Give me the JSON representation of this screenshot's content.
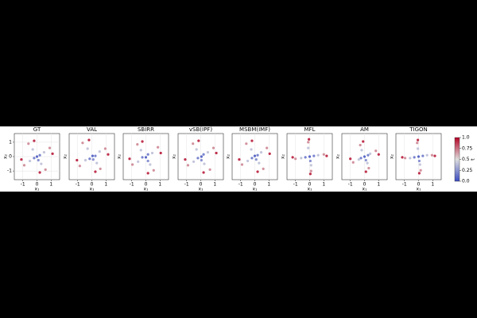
{
  "chart_data": [
    {
      "type": "scatter",
      "title": "GT",
      "xlabel": "x₁",
      "ylabel": "x₂",
      "xlim": [
        -1.6,
        1.6
      ],
      "ylim": [
        -1.6,
        1.6
      ],
      "xticks": [
        -1,
        0,
        1
      ],
      "yticks": [
        -1,
        0,
        1
      ],
      "x": [
        0,
        0.2,
        -0.2,
        0.1,
        0.5,
        -0.5,
        0.3,
        -0.3,
        0.9,
        -0.9,
        0.6,
        -0.6,
        1.1,
        -1.1,
        0.2,
        -0.2
      ],
      "y": [
        0,
        0.1,
        -0.1,
        -0.25,
        0.3,
        -0.3,
        -0.5,
        0.5,
        0.6,
        -0.6,
        -0.9,
        0.9,
        0.2,
        -0.2,
        -1.1,
        1.1
      ],
      "t": [
        0.05,
        0.15,
        0.15,
        0.2,
        0.4,
        0.4,
        0.4,
        0.4,
        0.7,
        0.7,
        0.7,
        0.7,
        0.95,
        0.95,
        0.95,
        0.95
      ]
    },
    {
      "type": "scatter",
      "title": "VAL",
      "xlabel": "x₁",
      "ylabel": "x₂",
      "xlim": [
        -1.6,
        1.6
      ],
      "ylim": [
        -1.6,
        1.6
      ],
      "xticks": [
        -1,
        0,
        1
      ],
      "x": [
        0.05,
        0.25,
        -0.15,
        0.1,
        0.55,
        -0.45,
        0.35,
        -0.3,
        0.95,
        -0.85,
        0.6,
        -0.65,
        1.15,
        -1.05,
        0.25,
        -0.2
      ],
      "y": [
        0.05,
        0.05,
        -0.15,
        -0.2,
        0.35,
        -0.25,
        -0.45,
        0.55,
        0.55,
        -0.65,
        -0.85,
        0.95,
        0.15,
        -0.25,
        -1.05,
        1.15
      ],
      "t": [
        0.05,
        0.15,
        0.15,
        0.2,
        0.4,
        0.4,
        0.4,
        0.4,
        0.7,
        0.7,
        0.7,
        0.7,
        0.95,
        0.95,
        0.95,
        0.95
      ]
    },
    {
      "type": "scatter",
      "title": "SBIRR",
      "xlabel": "x₁",
      "ylabel": "x₂",
      "xlim": [
        -1.6,
        1.6
      ],
      "ylim": [
        -1.6,
        1.6
      ],
      "xticks": [
        -1,
        0,
        1
      ],
      "x": [
        0,
        0.15,
        -0.25,
        0.15,
        0.45,
        -0.55,
        0.3,
        -0.35,
        0.85,
        -0.95,
        0.55,
        -0.6,
        1.05,
        -1.15,
        0.15,
        -0.25
      ],
      "y": [
        -0.05,
        0.15,
        -0.05,
        -0.3,
        0.25,
        -0.35,
        -0.55,
        0.45,
        0.65,
        -0.55,
        -0.95,
        0.85,
        0.25,
        -0.15,
        -1.15,
        1.05
      ],
      "t": [
        0.05,
        0.15,
        0.15,
        0.2,
        0.4,
        0.4,
        0.4,
        0.4,
        0.7,
        0.7,
        0.7,
        0.7,
        0.95,
        0.95,
        0.95,
        0.95
      ]
    },
    {
      "type": "scatter",
      "title": "vSB(IPF)",
      "xlabel": "x₁",
      "ylabel": "x₂",
      "xlim": [
        -1.6,
        1.6
      ],
      "ylim": [
        -1.6,
        1.6
      ],
      "xticks": [
        -1,
        0,
        1
      ],
      "x": [
        0.05,
        0.2,
        -0.2,
        0.05,
        0.5,
        -0.5,
        0.25,
        -0.3,
        0.9,
        -0.9,
        0.65,
        -0.55,
        1.1,
        -1.1,
        0.2,
        -0.15
      ],
      "y": [
        0,
        0.15,
        -0.1,
        -0.25,
        0.3,
        -0.35,
        -0.5,
        0.5,
        0.6,
        -0.6,
        -0.9,
        0.9,
        0.25,
        -0.2,
        -1.1,
        1.1
      ],
      "t": [
        0.05,
        0.15,
        0.15,
        0.2,
        0.4,
        0.4,
        0.4,
        0.4,
        0.7,
        0.7,
        0.7,
        0.7,
        0.95,
        0.95,
        0.95,
        0.95
      ]
    },
    {
      "type": "scatter",
      "title": "MSBM(IMF)",
      "xlabel": "x₁",
      "ylabel": "x₂",
      "xlim": [
        -1.6,
        1.6
      ],
      "ylim": [
        -1.6,
        1.6
      ],
      "xticks": [
        -1,
        0,
        1
      ],
      "x": [
        0,
        0.2,
        -0.2,
        0.1,
        0.45,
        -0.5,
        0.3,
        -0.25,
        0.85,
        -0.9,
        0.6,
        -0.6,
        1.05,
        -1.1,
        0.2,
        -0.2
      ],
      "y": [
        0.05,
        0.1,
        -0.1,
        -0.2,
        0.3,
        -0.3,
        -0.45,
        0.5,
        0.6,
        -0.55,
        -0.85,
        0.9,
        0.2,
        -0.2,
        -1.05,
        1.1
      ],
      "t": [
        0.05,
        0.15,
        0.15,
        0.2,
        0.4,
        0.4,
        0.4,
        0.4,
        0.7,
        0.7,
        0.7,
        0.7,
        0.95,
        0.95,
        0.95,
        0.95
      ]
    },
    {
      "type": "scatter",
      "title": "MFL",
      "xlabel": "x₁",
      "ylabel": "x₂",
      "xlim": [
        -1.6,
        1.6
      ],
      "ylim": [
        -1.6,
        1.6
      ],
      "xticks": [
        -1,
        0,
        1
      ],
      "x": [
        0,
        0.3,
        -0.3,
        0.05,
        0.6,
        -0.6,
        0.1,
        -0.1,
        1.0,
        -1.0,
        0.1,
        -0.1,
        1.2,
        -1.2,
        0.05,
        -0.05
      ],
      "y": [
        0,
        0.05,
        -0.05,
        -0.3,
        0.1,
        -0.1,
        -0.6,
        0.6,
        0.15,
        -0.15,
        -1.0,
        1.0,
        0.05,
        -0.05,
        -1.2,
        1.2
      ],
      "t": [
        0.05,
        0.15,
        0.15,
        0.2,
        0.4,
        0.4,
        0.4,
        0.4,
        0.7,
        0.7,
        0.7,
        0.7,
        0.95,
        0.95,
        0.95,
        0.95
      ]
    },
    {
      "type": "scatter",
      "title": "AM",
      "xlabel": "x₁",
      "ylabel": "x₂",
      "xlim": [
        -1.6,
        1.6
      ],
      "ylim": [
        -1.6,
        1.6
      ],
      "xticks": [
        -1,
        0,
        1
      ],
      "x": [
        0,
        0.25,
        -0.25,
        0.1,
        0.4,
        -0.4,
        0.2,
        -0.2,
        0.8,
        -0.8,
        0.3,
        -0.3,
        1.0,
        -1.0,
        0.1,
        -0.1
      ],
      "y": [
        0,
        0.1,
        -0.1,
        -0.25,
        0.2,
        -0.2,
        -0.45,
        0.45,
        0.4,
        -0.4,
        -0.8,
        0.8,
        0.15,
        -0.15,
        -1.05,
        1.05
      ],
      "t": [
        0.05,
        0.15,
        0.15,
        0.2,
        0.4,
        0.4,
        0.4,
        0.4,
        0.7,
        0.7,
        0.7,
        0.7,
        0.95,
        0.95,
        0.95,
        0.95
      ]
    },
    {
      "type": "scatter",
      "title": "TIGON",
      "xlabel": "x₁",
      "ylabel": "x₂",
      "xlim": [
        -1.6,
        1.6
      ],
      "ylim": [
        -1.6,
        1.6
      ],
      "xticks": [
        -1,
        0,
        1
      ],
      "x": [
        0,
        0.3,
        -0.3,
        0.05,
        0.6,
        -0.6,
        0.1,
        -0.05,
        0.95,
        -0.95,
        0.15,
        -0.1,
        1.15,
        -1.15,
        0.05,
        -0.05
      ],
      "y": [
        0,
        0.05,
        -0.05,
        -0.3,
        0.1,
        -0.1,
        -0.55,
        0.55,
        0.1,
        -0.1,
        -0.95,
        0.95,
        0.05,
        -0.05,
        -1.15,
        1.15
      ],
      "t": [
        0.05,
        0.15,
        0.15,
        0.2,
        0.4,
        0.4,
        0.4,
        0.4,
        0.7,
        0.7,
        0.7,
        0.7,
        0.95,
        0.95,
        0.95,
        0.95
      ]
    }
  ],
  "colorbar": {
    "label": "t",
    "lim": [
      0,
      1
    ],
    "ticks": [
      {
        "value": 0,
        "label": "0.0"
      },
      0.25,
      0.5,
      0.75,
      {
        "value": 1,
        "label": "1.0"
      }
    ]
  }
}
